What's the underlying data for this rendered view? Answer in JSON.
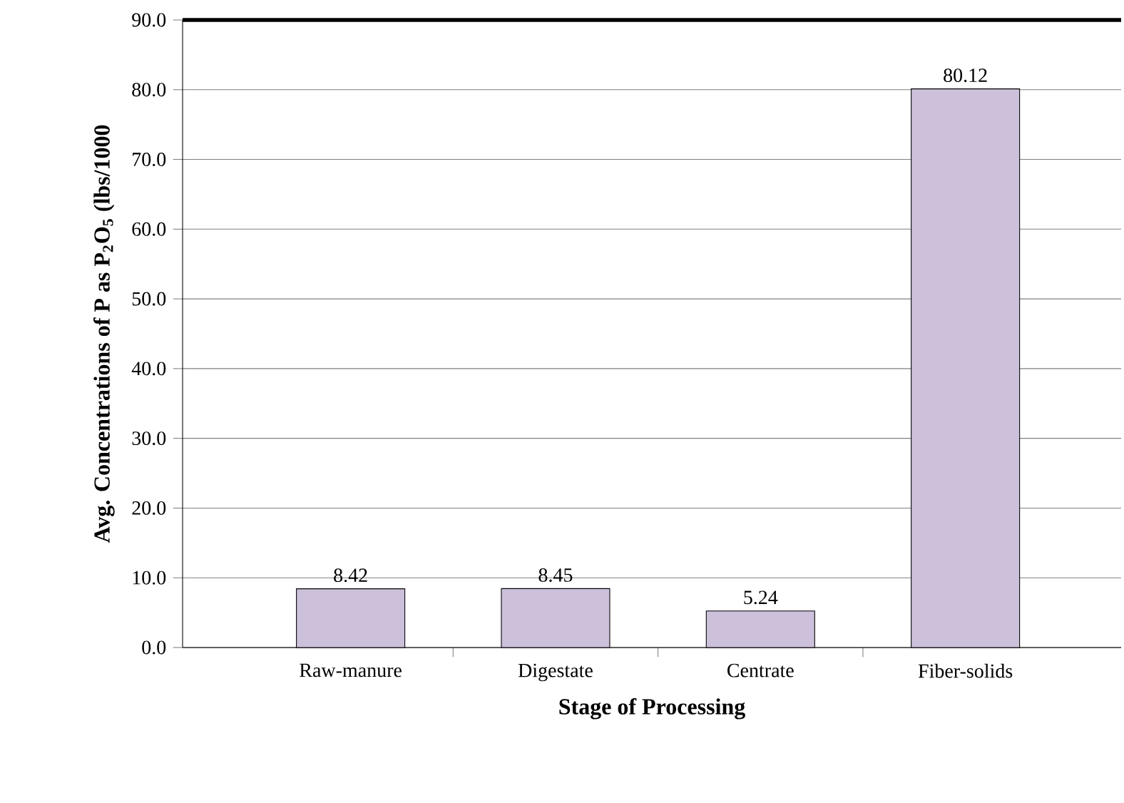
{
  "chart_data": {
    "type": "bar",
    "xlabel": "Stage of Processing",
    "ylabel": "Avg. Concentrations of P as P$_{2}$O$_{5}$ (lbs/1000",
    "categories": [
      "Raw-manure",
      "Digestate",
      "Centrate",
      "Fiber-solids"
    ],
    "values": [
      8.42,
      8.45,
      5.24,
      80.12
    ],
    "color": "#ccc0da",
    "ylim": [
      0,
      90
    ],
    "yticks": [
      {
        "value": 0,
        "label": "0.0"
      },
      {
        "value": 10,
        "label": "10.0"
      },
      {
        "value": 20,
        "label": "20.0"
      },
      {
        "value": 30,
        "label": "30.0"
      },
      {
        "value": 40,
        "label": "40.0"
      },
      {
        "value": 50,
        "label": "50.0"
      },
      {
        "value": 60,
        "label": "60.0"
      },
      {
        "value": 70,
        "label": "70.0"
      },
      {
        "value": 80,
        "label": "80.0"
      },
      {
        "value": 90,
        "label": "90.0"
      }
    ],
    "grid": "y",
    "data_labels": true
  }
}
